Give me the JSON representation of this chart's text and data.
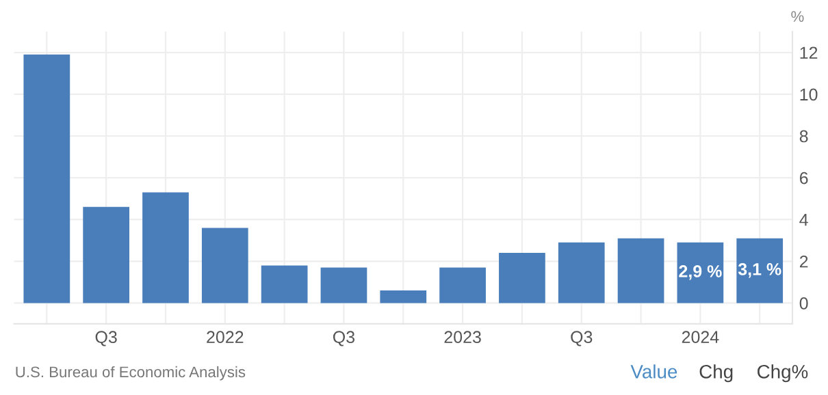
{
  "chart_data": {
    "type": "bar",
    "ylabel": "%",
    "categories": [
      null,
      "Q3",
      null,
      "2022",
      null,
      "Q3",
      null,
      "2023",
      null,
      "Q3",
      null,
      "2024",
      null
    ],
    "values": [
      11.9,
      4.6,
      5.3,
      3.6,
      1.8,
      1.7,
      0.6,
      1.7,
      2.4,
      2.9,
      3.1,
      2.9,
      3.1
    ],
    "value_labels": [
      null,
      null,
      null,
      null,
      null,
      null,
      null,
      null,
      null,
      null,
      null,
      "2,9 %",
      "3,1 %"
    ],
    "color": "#4a7ebb",
    "ylim": [
      -1,
      13
    ],
    "yticks": [
      0,
      2,
      4,
      6,
      8,
      10,
      12
    ],
    "grid": true,
    "annotations": [
      "U.S. Bureau of Economic Analysis",
      "Value",
      "Chg",
      "Chg%"
    ]
  }
}
